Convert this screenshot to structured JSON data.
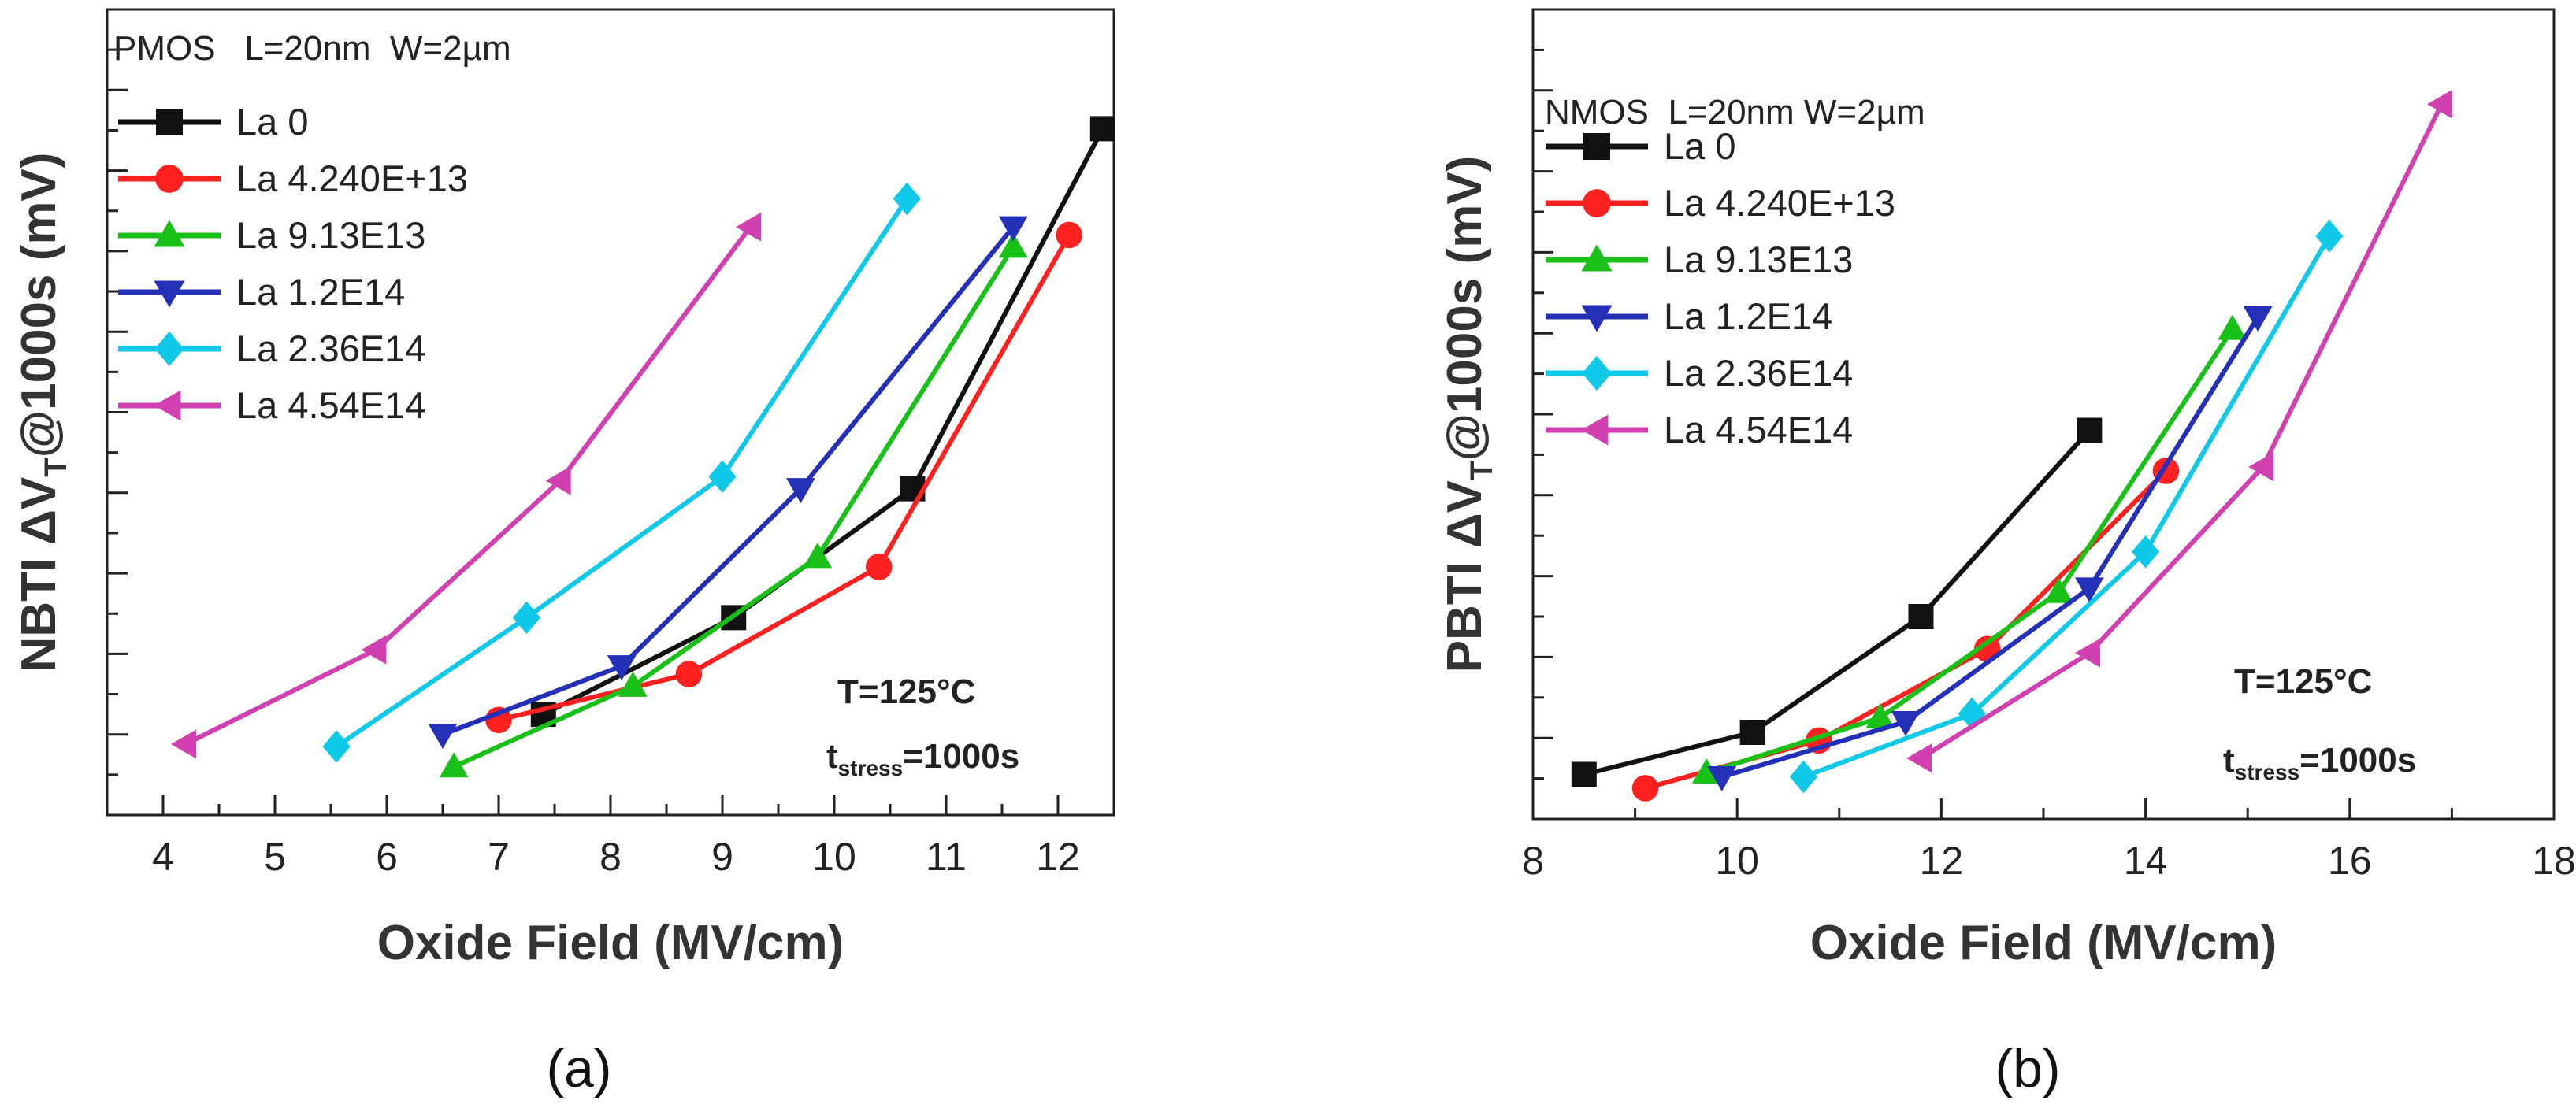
{
  "colors": {
    "La 0": "#111111",
    "La 4.240E+13": "#ff2020",
    "La 9.13E13": "#18c018",
    "La 1.2E14": "#2530b8",
    "La 2.36E14": "#10c8e8",
    "La 4.54E14": "#d040b0"
  },
  "chart_data": [
    {
      "type": "line",
      "panel_caption": "(a)",
      "device_label": "PMOS   L=20nm  W=2µm",
      "xlabel": "Oxide Field (MV/cm)",
      "ylabel": "NBTI ΔV",
      "ylabel_sub": "T",
      "ylabel_suffix": "@1000s (mV)",
      "xlim": [
        3.5,
        12.5
      ],
      "ylim": [
        0,
        10
      ],
      "xticks": [
        "4",
        "5",
        "6",
        "7",
        "8",
        "9",
        "10",
        "11",
        "12"
      ],
      "xtick_values": [
        4,
        5,
        6,
        7,
        8,
        9,
        10,
        11,
        12
      ],
      "condition_temp": "T=125°C",
      "condition_t": "t",
      "condition_sub": "stress",
      "condition_val": "=1000s",
      "series": [
        {
          "name": "La 0",
          "marker": "square",
          "x": [
            7.4,
            9.1,
            10.7,
            12.4
          ],
          "y": [
            1.25,
            2.45,
            4.05,
            8.52
          ]
        },
        {
          "name": "La 4.240E+13",
          "marker": "circle",
          "x": [
            7.0,
            8.7,
            10.4,
            12.1
          ],
          "y": [
            1.18,
            1.75,
            3.08,
            7.2
          ]
        },
        {
          "name": "La 9.13E13",
          "marker": "triangle-up",
          "x": [
            6.6,
            8.2,
            9.85,
            11.6
          ],
          "y": [
            0.6,
            1.6,
            3.2,
            7.05
          ]
        },
        {
          "name": "La 1.2E14",
          "marker": "triangle-down",
          "x": [
            6.5,
            8.1,
            9.7,
            11.6
          ],
          "y": [
            1.0,
            1.85,
            4.05,
            7.3
          ]
        },
        {
          "name": "La 2.36E14",
          "marker": "diamond",
          "x": [
            5.55,
            7.25,
            9.0,
            10.65
          ],
          "y": [
            0.85,
            2.45,
            4.2,
            7.65
          ]
        },
        {
          "name": "La 4.54E14",
          "marker": "triangle-left",
          "x": [
            4.2,
            5.9,
            7.55,
            9.25
          ],
          "y": [
            0.88,
            2.05,
            4.15,
            7.3
          ]
        }
      ]
    },
    {
      "type": "line",
      "panel_caption": "(b)",
      "device_label": "NMOS  L=20nm W=2µm",
      "xlabel": "Oxide Field (MV/cm)",
      "ylabel": "PBTI ΔV",
      "ylabel_sub": "T",
      "ylabel_suffix": "@1000s (mV)",
      "xlim": [
        8,
        18
      ],
      "ylim": [
        0,
        10
      ],
      "xticks": [
        "8",
        "10",
        "12",
        "14",
        "16",
        "18"
      ],
      "xtick_values": [
        8,
        10,
        12,
        14,
        16,
        18
      ],
      "condition_temp": "T=125°C",
      "condition_t": "t",
      "condition_sub": "stress",
      "condition_val": "=1000s",
      "series": [
        {
          "name": "La 0",
          "marker": "square",
          "x": [
            8.5,
            10.15,
            11.8,
            13.45
          ],
          "y": [
            0.55,
            1.07,
            2.5,
            4.8
          ]
        },
        {
          "name": "La 4.240E+13",
          "marker": "circle",
          "x": [
            9.1,
            10.8,
            12.45,
            14.2
          ],
          "y": [
            0.38,
            0.97,
            2.1,
            4.3
          ]
        },
        {
          "name": "La 9.13E13",
          "marker": "triangle-up",
          "x": [
            9.7,
            11.4,
            13.15,
            14.85
          ],
          "y": [
            0.57,
            1.25,
            2.8,
            6.05
          ]
        },
        {
          "name": "La 1.2E14",
          "marker": "triangle-down",
          "x": [
            9.85,
            11.65,
            13.45,
            15.1
          ],
          "y": [
            0.52,
            1.2,
            2.85,
            6.2
          ]
        },
        {
          "name": "La 2.36E14",
          "marker": "diamond",
          "x": [
            10.65,
            12.3,
            14.0,
            15.8
          ],
          "y": [
            0.52,
            1.3,
            3.3,
            7.2
          ]
        },
        {
          "name": "La 4.54E14",
          "marker": "triangle-left",
          "x": [
            11.8,
            13.45,
            15.15,
            16.9
          ],
          "y": [
            0.75,
            2.05,
            4.35,
            8.83
          ]
        }
      ]
    }
  ]
}
